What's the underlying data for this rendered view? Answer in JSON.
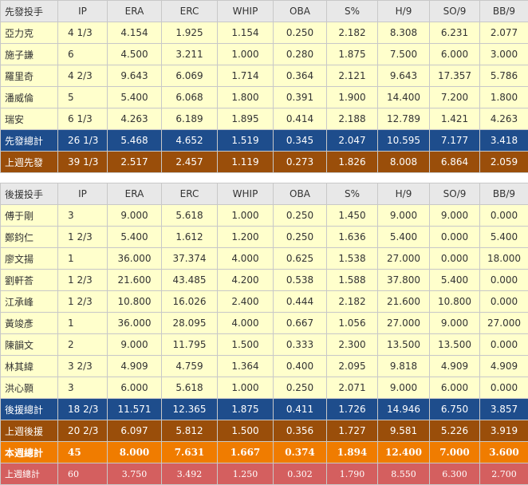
{
  "columns": [
    "IP",
    "ERA",
    "ERC",
    "WHIP",
    "OBA",
    "S%",
    "H/9",
    "SO/9",
    "BB/9"
  ],
  "starters": {
    "header": "先發投手",
    "rows": [
      {
        "name": "亞力克",
        "vals": [
          "4 1/3",
          "4.154",
          "1.925",
          "1.154",
          "0.250",
          "2.182",
          "8.308",
          "6.231",
          "2.077"
        ]
      },
      {
        "name": "施子謙",
        "vals": [
          "6",
          "4.500",
          "3.211",
          "1.000",
          "0.280",
          "1.875",
          "7.500",
          "6.000",
          "3.000"
        ]
      },
      {
        "name": "羅里奇",
        "vals": [
          "4 2/3",
          "9.643",
          "6.069",
          "1.714",
          "0.364",
          "2.121",
          "9.643",
          "17.357",
          "5.786"
        ]
      },
      {
        "name": "潘威倫",
        "vals": [
          "5",
          "5.400",
          "6.068",
          "1.800",
          "0.391",
          "1.900",
          "14.400",
          "7.200",
          "1.800"
        ]
      },
      {
        "name": "瑞安",
        "vals": [
          "6 1/3",
          "4.263",
          "6.189",
          "1.895",
          "0.414",
          "2.188",
          "12.789",
          "1.421",
          "4.263"
        ]
      }
    ],
    "total": {
      "name": "先發總計",
      "vals": [
        "26 1/3",
        "5.468",
        "4.652",
        "1.519",
        "0.345",
        "2.047",
        "10.595",
        "7.177",
        "3.418"
      ]
    },
    "lastweek": {
      "name": "上週先發",
      "vals": [
        "39 1/3",
        "2.517",
        "2.457",
        "1.119",
        "0.273",
        "1.826",
        "8.008",
        "6.864",
        "2.059"
      ]
    }
  },
  "relievers": {
    "header": "後援投手",
    "rows": [
      {
        "name": "傅于剛",
        "vals": [
          "3",
          "9.000",
          "5.618",
          "1.000",
          "0.250",
          "1.450",
          "9.000",
          "9.000",
          "0.000"
        ]
      },
      {
        "name": "鄭鈞仁",
        "vals": [
          "1 2/3",
          "5.400",
          "1.612",
          "1.200",
          "0.250",
          "1.636",
          "5.400",
          "0.000",
          "5.400"
        ]
      },
      {
        "name": "廖文揚",
        "vals": [
          "1",
          "36.000",
          "37.374",
          "4.000",
          "0.625",
          "1.538",
          "27.000",
          "0.000",
          "18.000"
        ]
      },
      {
        "name": "劉軒荅",
        "vals": [
          "1 2/3",
          "21.600",
          "43.485",
          "4.200",
          "0.538",
          "1.588",
          "37.800",
          "5.400",
          "0.000"
        ]
      },
      {
        "name": "江承峰",
        "vals": [
          "1 2/3",
          "10.800",
          "16.026",
          "2.400",
          "0.444",
          "2.182",
          "21.600",
          "10.800",
          "0.000"
        ]
      },
      {
        "name": "黃竣彥",
        "vals": [
          "1",
          "36.000",
          "28.095",
          "4.000",
          "0.667",
          "1.056",
          "27.000",
          "9.000",
          "27.000"
        ]
      },
      {
        "name": "陳韻文",
        "vals": [
          "2",
          "9.000",
          "11.795",
          "1.500",
          "0.333",
          "2.300",
          "13.500",
          "13.500",
          "0.000"
        ]
      },
      {
        "name": "林其緯",
        "vals": [
          "3 2/3",
          "4.909",
          "4.759",
          "1.364",
          "0.400",
          "2.095",
          "9.818",
          "4.909",
          "4.909"
        ]
      },
      {
        "name": "洪心顥",
        "vals": [
          "3",
          "6.000",
          "5.618",
          "1.000",
          "0.250",
          "2.071",
          "9.000",
          "6.000",
          "0.000"
        ]
      }
    ],
    "total": {
      "name": "後援總計",
      "vals": [
        "18 2/3",
        "11.571",
        "12.365",
        "1.875",
        "0.411",
        "1.726",
        "14.946",
        "6.750",
        "3.857"
      ]
    },
    "lastweek": {
      "name": "上週後援",
      "vals": [
        "20 2/3",
        "6.097",
        "5.812",
        "1.500",
        "0.356",
        "1.727",
        "9.581",
        "5.226",
        "3.919"
      ]
    },
    "thisweek": {
      "name": "本週總計",
      "vals": [
        "45",
        "8.000",
        "7.631",
        "1.667",
        "0.374",
        "1.894",
        "12.400",
        "7.000",
        "3.600"
      ]
    },
    "prevweek": {
      "name": "上週總計",
      "vals": [
        "60",
        "3.750",
        "3.492",
        "1.250",
        "0.302",
        "1.790",
        "8.550",
        "6.300",
        "2.700"
      ]
    }
  },
  "colors": {
    "total": "#1e4d8c",
    "lastweek": "#9a4e0a",
    "thisweek": "#f07c00",
    "prevweek": "#d45f5f",
    "body": "#ffffcc"
  }
}
